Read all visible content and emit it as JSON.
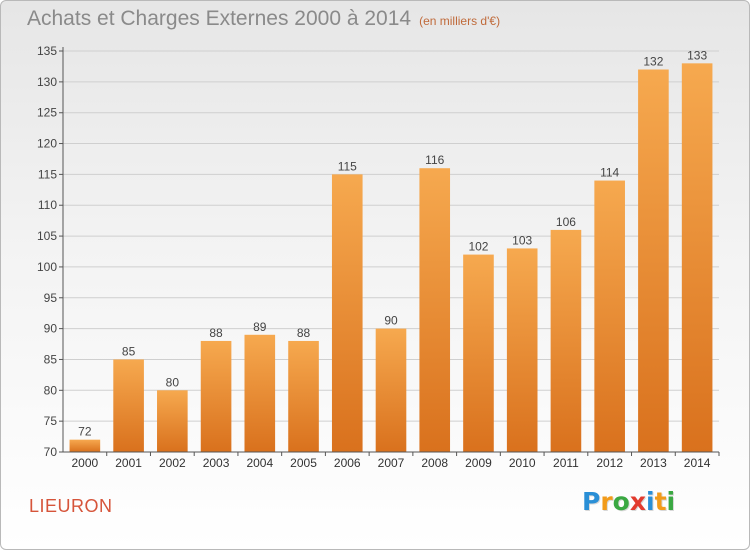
{
  "title": "Achats et Charges Externes 2000 à 2014",
  "unit_note": "(en milliers d'€)",
  "place": "LIEURON",
  "logo": {
    "text": "Proxiti",
    "letters": [
      {
        "char": "P",
        "color": "#2a8fd6"
      },
      {
        "char": "r",
        "color": "#f29b1a"
      },
      {
        "char": "o",
        "color": "#3aa842"
      },
      {
        "char": "x",
        "color": "#e23b2e"
      },
      {
        "char": "i",
        "color": "#2a8fd6"
      },
      {
        "char": "t",
        "color": "#f29b1a"
      },
      {
        "char": "i",
        "color": "#3aa842"
      }
    ]
  },
  "colors": {
    "bar_top": "#f6a94f",
    "bar_bottom": "#d9711d",
    "axis": "#555555",
    "grid": "#cfcfcf"
  },
  "chart_data": {
    "type": "bar",
    "categories": [
      "2000",
      "2001",
      "2002",
      "2003",
      "2004",
      "2005",
      "2006",
      "2007",
      "2008",
      "2009",
      "2010",
      "2011",
      "2012",
      "2013",
      "2014"
    ],
    "values": [
      72,
      85,
      80,
      88,
      89,
      88,
      115,
      90,
      116,
      102,
      103,
      106,
      114,
      132,
      133
    ],
    "ylim": [
      70,
      135
    ],
    "yticks": [
      70,
      75,
      80,
      85,
      90,
      95,
      100,
      105,
      110,
      115,
      120,
      125,
      130,
      135
    ],
    "grid": true,
    "grid_axis": "y",
    "legend": "none"
  }
}
